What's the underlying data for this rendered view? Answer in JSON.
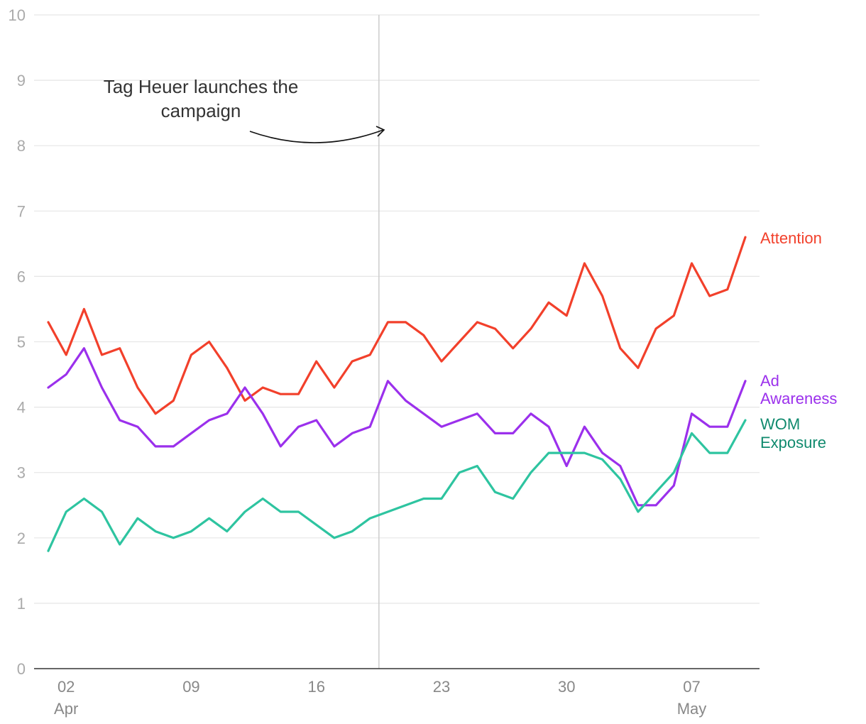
{
  "chart_data": {
    "type": "line",
    "xlabel": "",
    "ylabel": "",
    "ylim": [
      0,
      10
    ],
    "yticks": [
      0,
      1,
      2,
      3,
      4,
      5,
      6,
      7,
      8,
      9,
      10
    ],
    "grid": true,
    "x_start": "2023-04-01",
    "x": [
      "Mar 31",
      "Apr 01",
      "Apr 02",
      "Apr 03",
      "Apr 04",
      "Apr 05",
      "Apr 06",
      "Apr 07",
      "Apr 08",
      "Apr 09",
      "Apr 10",
      "Apr 11",
      "Apr 12",
      "Apr 13",
      "Apr 14",
      "Apr 15",
      "Apr 16",
      "Apr 17",
      "Apr 18",
      "Apr 19",
      "Apr 20",
      "Apr 21",
      "Apr 22",
      "Apr 23",
      "Apr 24",
      "Apr 25",
      "Apr 26",
      "Apr 27",
      "Apr 28",
      "Apr 29",
      "Apr 30",
      "May 01",
      "May 02",
      "May 03",
      "May 04",
      "May 05",
      "May 06",
      "May 07",
      "May 08",
      "May 09"
    ],
    "xticks": [
      {
        "label": "02",
        "sub": "Apr",
        "index": 1
      },
      {
        "label": "09",
        "sub": "",
        "index": 8
      },
      {
        "label": "16",
        "sub": "",
        "index": 15
      },
      {
        "label": "23",
        "sub": "",
        "index": 22
      },
      {
        "label": "30",
        "sub": "",
        "index": 29
      },
      {
        "label": "07",
        "sub": "May",
        "index": 36
      }
    ],
    "series": [
      {
        "name": "Attention",
        "color": "#f2402b",
        "values": [
          5.3,
          4.8,
          5.5,
          4.8,
          4.9,
          4.3,
          3.9,
          4.1,
          4.8,
          5.0,
          4.6,
          4.1,
          4.3,
          4.2,
          4.2,
          4.7,
          4.3,
          4.7,
          4.8,
          5.3,
          5.3,
          5.1,
          4.7,
          5.0,
          5.3,
          5.2,
          4.9,
          5.2,
          5.6,
          5.4,
          6.2,
          5.7,
          4.9,
          4.6,
          5.2,
          5.4,
          6.2,
          5.7,
          5.8,
          6.6
        ]
      },
      {
        "name": "Ad Awareness",
        "color": "#9b30ec",
        "values": [
          4.3,
          4.5,
          4.9,
          4.3,
          3.8,
          3.7,
          3.4,
          3.4,
          3.6,
          3.8,
          3.9,
          4.3,
          3.9,
          3.4,
          3.7,
          3.8,
          3.4,
          3.6,
          3.7,
          4.4,
          4.1,
          3.9,
          3.7,
          3.8,
          3.9,
          3.6,
          3.6,
          3.9,
          3.7,
          3.1,
          3.7,
          3.3,
          3.1,
          2.5,
          2.5,
          2.8,
          3.9,
          3.7,
          3.7,
          4.4
        ]
      },
      {
        "name": "WOM Exposure",
        "color": "#2ec4a0",
        "values": [
          1.8,
          2.4,
          2.6,
          2.4,
          1.9,
          2.3,
          2.1,
          2.0,
          2.1,
          2.3,
          2.1,
          2.4,
          2.6,
          2.4,
          2.4,
          2.2,
          2.0,
          2.1,
          2.3,
          2.4,
          2.5,
          2.6,
          2.6,
          3.0,
          3.1,
          2.7,
          2.6,
          3.0,
          3.3,
          3.3,
          3.3,
          3.2,
          2.9,
          2.4,
          2.7,
          3.0,
          3.6,
          3.3,
          3.3,
          3.8
        ]
      }
    ],
    "series_labels": [
      {
        "lines": [
          "Attention"
        ],
        "color": "#f2402b"
      },
      {
        "lines": [
          "Ad",
          "Awareness"
        ],
        "color": "#9b30ec"
      },
      {
        "lines": [
          "WOM",
          "Exposure"
        ],
        "color": "#108a6e"
      }
    ],
    "event": {
      "index": 18.5,
      "annotation": [
        "Tag Heuer launches the",
        "campaign"
      ]
    }
  }
}
